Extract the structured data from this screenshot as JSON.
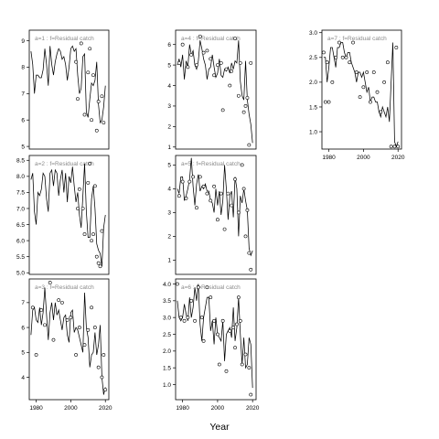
{
  "figure": {
    "xlabel": "Year"
  },
  "chart_data": [
    {
      "type": "scatter",
      "overlay": "line",
      "title": "a=1 : f=Residual catch",
      "xlim": [
        1976,
        2022
      ],
      "ylim": [
        4.9,
        9.4
      ],
      "xticks": [
        1980,
        2000,
        2020
      ],
      "xticks_shown": false,
      "yticks": [
        5,
        6,
        7,
        8,
        9
      ],
      "line": {
        "x": [
          1977,
          1978,
          1979,
          1980,
          1981,
          1982,
          1983,
          1984,
          1985,
          1986,
          1987,
          1988,
          1989,
          1990,
          1991,
          1992,
          1993,
          1994,
          1995,
          1996,
          1997,
          1998,
          1999,
          2000,
          2001,
          2002,
          2003,
          2004,
          2005,
          2006,
          2007,
          2008,
          2009,
          2010,
          2011,
          2012,
          2013,
          2014,
          2015,
          2016,
          2017,
          2018,
          2019,
          2020
        ],
        "y": [
          8.6,
          8.1,
          7.0,
          7.7,
          7.7,
          7.6,
          7.6,
          7.9,
          8.7,
          8.1,
          7.3,
          8.8,
          8.1,
          7.7,
          8.2,
          8.5,
          8.7,
          8.6,
          8.3,
          8.4,
          8.1,
          7.5,
          8.0,
          8.7,
          8.8,
          8.6,
          8.7,
          7.7,
          7.0,
          7.2,
          8.4,
          8.5,
          6.3,
          6.1,
          6.8,
          7.4,
          7.3,
          7.5,
          8.2,
          6.6,
          5.9,
          6.0,
          6.5,
          7.3
        ]
      },
      "points": {
        "x": [
          2003,
          2004,
          2006,
          2008,
          2010,
          2011,
          2012,
          2013,
          2015,
          2016,
          2018,
          2019
        ],
        "y": [
          8.2,
          6.8,
          8.9,
          6.2,
          7.8,
          8.7,
          6.0,
          7.7,
          5.6,
          6.7,
          6.9,
          5.9
        ]
      }
    },
    {
      "type": "scatter",
      "overlay": "line",
      "title": "a=2 : f=Residual catch",
      "xlim": [
        1976,
        2022
      ],
      "ylim": [
        4.95,
        8.65
      ],
      "xticks": [
        1980,
        2000,
        2020
      ],
      "xticks_shown": false,
      "yticks": [
        5.0,
        5.5,
        6.0,
        6.5,
        7.0,
        7.5,
        8.0,
        8.5
      ],
      "line": {
        "x": [
          1977,
          1978,
          1979,
          1980,
          1981,
          1982,
          1983,
          1984,
          1985,
          1986,
          1987,
          1988,
          1989,
          1990,
          1991,
          1992,
          1993,
          1994,
          1995,
          1996,
          1997,
          1998,
          1999,
          2000,
          2001,
          2002,
          2003,
          2004,
          2005,
          2006,
          2007,
          2008,
          2009,
          2010,
          2011,
          2012,
          2013,
          2014,
          2015,
          2016,
          2017,
          2018,
          2019,
          2020
        ],
        "y": [
          7.9,
          8.1,
          6.9,
          6.5,
          7.5,
          7.4,
          7.6,
          8.1,
          8.0,
          7.3,
          6.9,
          8.1,
          8.2,
          7.7,
          8.2,
          8.1,
          7.4,
          7.9,
          8.2,
          7.5,
          8.1,
          7.2,
          8.0,
          7.8,
          8.3,
          7.7,
          7.2,
          7.5,
          6.8,
          6.4,
          7.4,
          8.4,
          6.9,
          6.1,
          6.1,
          7.3,
          7.7,
          7.0,
          5.9,
          5.7,
          5.6,
          5.2,
          6.4,
          6.8
        ]
      },
      "points": {
        "x": [
          2004,
          2005,
          2007,
          2008,
          2010,
          2011,
          2012,
          2013,
          2014,
          2015,
          2016,
          2017,
          2018
        ],
        "y": [
          7.0,
          7.6,
          7.0,
          6.2,
          7.8,
          8.4,
          6.0,
          6.2,
          7.7,
          5.5,
          5.3,
          5.2,
          6.3
        ]
      }
    },
    {
      "type": "scatter",
      "overlay": "line",
      "title": "a=3 : f=Residual catch",
      "xlim": [
        1976,
        2022
      ],
      "ylim": [
        3.1,
        7.95
      ],
      "xticks": [
        1980,
        2000,
        2020
      ],
      "xticks_shown": true,
      "yticks": [
        4,
        5,
        6,
        7
      ],
      "line": {
        "x": [
          1977,
          1978,
          1979,
          1980,
          1981,
          1982,
          1983,
          1984,
          1985,
          1986,
          1987,
          1988,
          1989,
          1990,
          1991,
          1992,
          1993,
          1994,
          1995,
          1996,
          1997,
          1998,
          1999,
          2000,
          2001,
          2002,
          2003,
          2004,
          2005,
          2006,
          2007,
          2008,
          2009,
          2010,
          2011,
          2012,
          2013,
          2014,
          2015,
          2016,
          2017,
          2018,
          2019,
          2020
        ],
        "y": [
          5.7,
          6.7,
          6.8,
          6.3,
          6.2,
          6.8,
          6.1,
          6.6,
          7.6,
          6.5,
          5.5,
          6.6,
          7.0,
          6.3,
          7.0,
          6.5,
          6.7,
          6.3,
          5.9,
          6.4,
          6.5,
          5.7,
          5.4,
          6.6,
          6.7,
          5.8,
          6.0,
          5.9,
          5.6,
          5.3,
          5.0,
          7.4,
          6.0,
          5.6,
          4.4,
          4.9,
          5.0,
          5.8,
          4.9,
          5.3,
          6.1,
          4.0,
          3.3,
          3.6
        ]
      },
      "points": {
        "x": [
          1978,
          1980,
          1983,
          1985,
          1988,
          1990,
          1993,
          1995,
          1998,
          2000,
          2003,
          2005,
          2008,
          2010,
          2012,
          2014,
          2016,
          2018,
          2019,
          2020
        ],
        "y": [
          6.8,
          4.9,
          6.7,
          6.1,
          7.8,
          5.5,
          7.1,
          7.0,
          6.3,
          6.4,
          4.9,
          6.0,
          5.3,
          5.9,
          6.8,
          6.0,
          4.4,
          4.0,
          4.9,
          3.5
        ]
      }
    },
    {
      "type": "scatter",
      "overlay": "line",
      "title": "a=4 : f=Residual catch",
      "xlim": [
        1976,
        2022
      ],
      "ylim": [
        0.9,
        6.7
      ],
      "xticks": [
        1980,
        2000,
        2020
      ],
      "xticks_shown": false,
      "yticks": [
        1,
        2,
        3,
        4,
        5,
        6
      ],
      "line": {
        "x": [
          1977,
          1978,
          1979,
          1980,
          1981,
          1982,
          1983,
          1984,
          1985,
          1986,
          1987,
          1988,
          1989,
          1990,
          1991,
          1992,
          1993,
          1994,
          1995,
          1996,
          1997,
          1998,
          1999,
          2000,
          2001,
          2002,
          2003,
          2004,
          2005,
          2006,
          2007,
          2008,
          2009,
          2010,
          2011,
          2012,
          2013,
          2014,
          2015,
          2016,
          2017,
          2018,
          2019,
          2020
        ],
        "y": [
          5.0,
          5.3,
          4.9,
          5.5,
          4.3,
          5.2,
          4.9,
          6.0,
          5.5,
          5.7,
          5.0,
          4.8,
          5.2,
          6.2,
          5.8,
          5.3,
          5.0,
          4.3,
          4.8,
          4.9,
          5.5,
          4.9,
          4.4,
          4.6,
          5.3,
          4.5,
          4.4,
          4.8,
          4.7,
          4.9,
          4.6,
          5.1,
          4.8,
          5.2,
          5.1,
          6.2,
          4.2,
          3.5,
          3.3,
          5.2,
          3.3,
          2.6,
          2.1,
          1.2
        ]
      },
      "points": {
        "x": [
          1978,
          1980,
          1983,
          1985,
          1988,
          1990,
          1992,
          1994,
          1996,
          1998,
          2000,
          2002,
          2003,
          2005,
          2007,
          2008,
          2010,
          2012,
          2013,
          2015,
          2016,
          2017,
          2018,
          2019
        ],
        "y": [
          5.1,
          6.0,
          4.9,
          5.5,
          5.0,
          6.4,
          5.6,
          5.7,
          5.3,
          4.5,
          5.0,
          5.1,
          2.8,
          4.8,
          4.0,
          4.7,
          6.3,
          3.5,
          5.1,
          2.7,
          3.0,
          3.4,
          1.1,
          5.1
        ]
      }
    },
    {
      "type": "scatter",
      "overlay": "line",
      "title": "a=5 : f=Residual catch",
      "xlim": [
        1976,
        2022
      ],
      "ylim": [
        0.4,
        5.4
      ],
      "xticks": [
        1980,
        2000,
        2020
      ],
      "xticks_shown": false,
      "yticks": [
        1,
        2,
        3,
        4,
        5
      ],
      "line": {
        "x": [
          1977,
          1978,
          1979,
          1980,
          1981,
          1982,
          1983,
          1984,
          1985,
          1986,
          1987,
          1988,
          1989,
          1990,
          1991,
          1992,
          1993,
          1994,
          1995,
          1996,
          1997,
          1998,
          1999,
          2000,
          2001,
          2002,
          2003,
          2004,
          2005,
          2006,
          2007,
          2008,
          2009,
          2010,
          2011,
          2012,
          2013,
          2014,
          2015,
          2016,
          2017,
          2018,
          2019,
          2020
        ],
        "y": [
          4.0,
          3.8,
          4.5,
          4.5,
          3.5,
          3.7,
          4.0,
          4.4,
          5.3,
          4.1,
          3.3,
          4.2,
          4.6,
          3.9,
          4.1,
          4.0,
          4.2,
          3.9,
          3.9,
          3.5,
          3.4,
          3.0,
          4.0,
          3.3,
          3.9,
          2.9,
          3.5,
          5.0,
          4.0,
          2.7,
          3.7,
          3.9,
          2.8,
          4.5,
          4.0,
          2.0,
          3.7,
          3.4,
          4.0,
          3.5,
          3.1,
          1.5,
          1.2,
          1.4
        ]
      },
      "points": {
        "x": [
          1978,
          1980,
          1982,
          1984,
          1986,
          1988,
          1990,
          1992,
          1994,
          1996,
          1998,
          2000,
          2002,
          2004,
          2006,
          2008,
          2010,
          2012,
          2014,
          2015,
          2016,
          2017,
          2018,
          2019
        ],
        "y": [
          3.7,
          4.3,
          3.6,
          4.3,
          4.5,
          3.2,
          4.5,
          4.1,
          3.8,
          3.5,
          4.1,
          2.7,
          3.8,
          2.3,
          3.8,
          3.3,
          4.4,
          3.0,
          5.0,
          4.0,
          2.0,
          3.1,
          1.3,
          0.6
        ]
      }
    },
    {
      "type": "scatter",
      "overlay": "line",
      "title": "a=6 : f=Residual catch",
      "xlim": [
        1976,
        2022
      ],
      "ylim": [
        0.55,
        4.15
      ],
      "xticks": [
        1980,
        2000,
        2020
      ],
      "xticks_shown": true,
      "yticks": [
        1.0,
        1.5,
        2.0,
        2.5,
        3.0,
        3.5,
        4.0
      ],
      "line": {
        "x": [
          1977,
          1978,
          1979,
          1980,
          1981,
          1982,
          1983,
          1984,
          1985,
          1986,
          1987,
          1988,
          1989,
          1990,
          1991,
          1992,
          1993,
          1994,
          1995,
          1996,
          1997,
          1998,
          1999,
          2000,
          2001,
          2002,
          2003,
          2004,
          2005,
          2006,
          2007,
          2008,
          2009,
          2010,
          2011,
          2012,
          2013,
          2014,
          2015,
          2016,
          2017,
          2018,
          2019,
          2020
        ],
        "y": [
          3.5,
          3.0,
          2.9,
          3.0,
          3.4,
          3.1,
          2.9,
          3.6,
          3.0,
          3.3,
          3.9,
          3.5,
          4.0,
          2.8,
          2.3,
          3.0,
          3.3,
          3.6,
          3.6,
          2.6,
          2.9,
          2.2,
          3.0,
          2.5,
          2.4,
          2.3,
          2.9,
          1.7,
          2.5,
          2.6,
          2.7,
          2.4,
          3.3,
          2.3,
          2.7,
          3.6,
          2.5,
          1.6,
          2.4,
          1.5,
          1.6,
          2.4,
          2.2,
          0.9
        ]
      },
      "points": {
        "x": [
          1977,
          1979,
          1981,
          1983,
          1985,
          1987,
          1989,
          1991,
          1992,
          1994,
          1996,
          1998,
          2000,
          2001,
          2003,
          2005,
          2007,
          2009,
          2010,
          2011,
          2012,
          2013,
          2014,
          2016,
          2018,
          2019
        ],
        "y": [
          4.0,
          3.0,
          2.9,
          3.0,
          3.5,
          2.9,
          3.9,
          3.0,
          2.3,
          3.9,
          3.6,
          2.9,
          2.5,
          1.6,
          2.9,
          1.4,
          2.6,
          2.7,
          2.1,
          2.8,
          3.6,
          2.9,
          1.6,
          1.9,
          1.5,
          0.7
        ]
      }
    },
    {
      "type": "scatter",
      "overlay": "line",
      "title": "a=7 : f=Residual catch",
      "xlim": [
        1976,
        2022
      ],
      "ylim": [
        0.65,
        3.05
      ],
      "xticks": [
        1980,
        2000,
        2020
      ],
      "xticks_shown": true,
      "yticks": [
        1.0,
        1.5,
        2.0,
        2.5,
        3.0
      ],
      "line": {
        "x": [
          1977,
          1978,
          1979,
          1980,
          1981,
          1982,
          1983,
          1984,
          1985,
          1986,
          1987,
          1988,
          1989,
          1990,
          1991,
          1992,
          1993,
          1994,
          1995,
          1996,
          1997,
          1998,
          1999,
          2000,
          2001,
          2002,
          2003,
          2004,
          2005,
          2006,
          2007,
          2008,
          2009,
          2010,
          2011,
          2012,
          2013,
          2014,
          2015,
          2016,
          2017,
          2018,
          2019,
          2020
        ],
        "y": [
          2.5,
          2.5,
          2.0,
          2.3,
          2.7,
          2.7,
          2.5,
          2.3,
          2.7,
          2.7,
          2.8,
          2.8,
          2.6,
          2.5,
          2.6,
          2.6,
          2.4,
          2.3,
          2.2,
          2.0,
          2.2,
          2.2,
          2.1,
          2.2,
          2.0,
          1.8,
          1.9,
          1.6,
          1.7,
          1.7,
          1.6,
          1.6,
          1.4,
          1.3,
          1.5,
          1.4,
          1.3,
          1.5,
          1.2,
          2.0,
          2.8,
          0.8,
          0.7,
          0.8
        ]
      },
      "points": {
        "x": [
          1977,
          1978,
          1979,
          1980,
          1982,
          1984,
          1986,
          1988,
          1990,
          1992,
          1994,
          1996,
          1998,
          2000,
          2002,
          2004,
          2006,
          2008,
          2010,
          2012,
          2014,
          2016,
          2018,
          2019,
          2020
        ],
        "y": [
          2.6,
          1.6,
          2.4,
          1.6,
          2.0,
          2.5,
          2.8,
          2.5,
          2.5,
          2.4,
          2.8,
          2.2,
          1.7,
          1.9,
          2.2,
          1.6,
          2.2,
          1.8,
          1.4,
          2.0,
          2.4,
          0.7,
          0.7,
          2.7,
          0.7
        ]
      }
    }
  ]
}
